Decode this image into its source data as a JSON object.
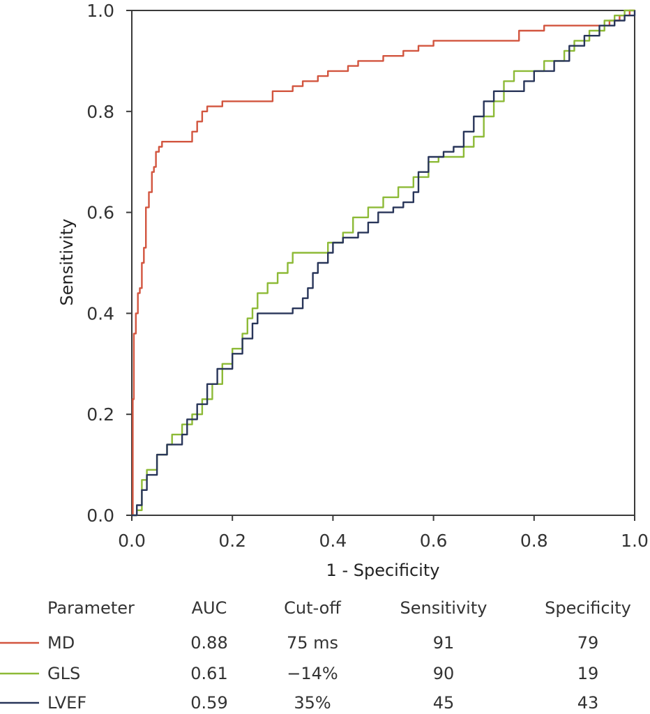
{
  "chart_data": {
    "type": "line",
    "xlabel": "1 - Specificity",
    "ylabel": "Sensitivity",
    "xlim": [
      0,
      1
    ],
    "ylim": [
      0,
      1
    ],
    "x_ticks": [
      "0.0",
      "0.2",
      "0.4",
      "0.6",
      "0.8",
      "1.0"
    ],
    "y_ticks": [
      "0.0",
      "0.2",
      "0.4",
      "0.6",
      "0.8",
      "1.0"
    ],
    "grid": false,
    "series": [
      {
        "name": "MD",
        "color": "#d2553f",
        "points": [
          [
            0,
            0
          ],
          [
            0.002,
            0.23
          ],
          [
            0.004,
            0.36
          ],
          [
            0.008,
            0.4
          ],
          [
            0.012,
            0.44
          ],
          [
            0.016,
            0.45
          ],
          [
            0.02,
            0.5
          ],
          [
            0.024,
            0.53
          ],
          [
            0.028,
            0.61
          ],
          [
            0.034,
            0.64
          ],
          [
            0.04,
            0.68
          ],
          [
            0.044,
            0.69
          ],
          [
            0.048,
            0.72
          ],
          [
            0.054,
            0.73
          ],
          [
            0.06,
            0.74
          ],
          [
            0.11,
            0.74
          ],
          [
            0.12,
            0.76
          ],
          [
            0.13,
            0.78
          ],
          [
            0.14,
            0.8
          ],
          [
            0.15,
            0.81
          ],
          [
            0.175,
            0.81
          ],
          [
            0.18,
            0.82
          ],
          [
            0.26,
            0.82
          ],
          [
            0.28,
            0.84
          ],
          [
            0.3,
            0.84
          ],
          [
            0.32,
            0.85
          ],
          [
            0.34,
            0.86
          ],
          [
            0.37,
            0.87
          ],
          [
            0.39,
            0.88
          ],
          [
            0.42,
            0.88
          ],
          [
            0.43,
            0.89
          ],
          [
            0.45,
            0.9
          ],
          [
            0.5,
            0.91
          ],
          [
            0.54,
            0.92
          ],
          [
            0.57,
            0.93
          ],
          [
            0.6,
            0.94
          ],
          [
            0.75,
            0.94
          ],
          [
            0.77,
            0.96
          ],
          [
            0.82,
            0.97
          ],
          [
            0.9,
            0.97
          ],
          [
            0.95,
            0.98
          ],
          [
            0.97,
            0.99
          ],
          [
            0.99,
            1.0
          ],
          [
            1.0,
            1.0
          ]
        ]
      },
      {
        "name": "GLS",
        "color": "#8dba37",
        "points": [
          [
            0,
            0
          ],
          [
            0.01,
            0.01
          ],
          [
            0.02,
            0.07
          ],
          [
            0.03,
            0.09
          ],
          [
            0.05,
            0.12
          ],
          [
            0.07,
            0.14
          ],
          [
            0.08,
            0.16
          ],
          [
            0.1,
            0.18
          ],
          [
            0.12,
            0.2
          ],
          [
            0.14,
            0.23
          ],
          [
            0.16,
            0.26
          ],
          [
            0.18,
            0.3
          ],
          [
            0.2,
            0.33
          ],
          [
            0.22,
            0.36
          ],
          [
            0.23,
            0.39
          ],
          [
            0.24,
            0.41
          ],
          [
            0.25,
            0.44
          ],
          [
            0.27,
            0.46
          ],
          [
            0.29,
            0.48
          ],
          [
            0.31,
            0.5
          ],
          [
            0.32,
            0.52
          ],
          [
            0.37,
            0.52
          ],
          [
            0.39,
            0.54
          ],
          [
            0.42,
            0.56
          ],
          [
            0.44,
            0.59
          ],
          [
            0.47,
            0.61
          ],
          [
            0.5,
            0.63
          ],
          [
            0.53,
            0.65
          ],
          [
            0.56,
            0.67
          ],
          [
            0.59,
            0.7
          ],
          [
            0.61,
            0.71
          ],
          [
            0.64,
            0.71
          ],
          [
            0.66,
            0.73
          ],
          [
            0.68,
            0.75
          ],
          [
            0.7,
            0.79
          ],
          [
            0.72,
            0.82
          ],
          [
            0.74,
            0.86
          ],
          [
            0.76,
            0.88
          ],
          [
            0.8,
            0.88
          ],
          [
            0.82,
            0.9
          ],
          [
            0.86,
            0.92
          ],
          [
            0.88,
            0.94
          ],
          [
            0.91,
            0.96
          ],
          [
            0.94,
            0.98
          ],
          [
            0.96,
            0.99
          ],
          [
            0.98,
            1.0
          ],
          [
            1.0,
            1.0
          ]
        ]
      },
      {
        "name": "LVEF",
        "color": "#283559",
        "points": [
          [
            0,
            0
          ],
          [
            0.01,
            0.02
          ],
          [
            0.02,
            0.05
          ],
          [
            0.03,
            0.08
          ],
          [
            0.05,
            0.12
          ],
          [
            0.07,
            0.14
          ],
          [
            0.1,
            0.16
          ],
          [
            0.11,
            0.19
          ],
          [
            0.13,
            0.22
          ],
          [
            0.15,
            0.26
          ],
          [
            0.17,
            0.29
          ],
          [
            0.2,
            0.32
          ],
          [
            0.22,
            0.35
          ],
          [
            0.24,
            0.38
          ],
          [
            0.25,
            0.4
          ],
          [
            0.3,
            0.4
          ],
          [
            0.32,
            0.41
          ],
          [
            0.34,
            0.43
          ],
          [
            0.35,
            0.45
          ],
          [
            0.36,
            0.48
          ],
          [
            0.37,
            0.5
          ],
          [
            0.39,
            0.52
          ],
          [
            0.4,
            0.54
          ],
          [
            0.42,
            0.55
          ],
          [
            0.45,
            0.56
          ],
          [
            0.47,
            0.58
          ],
          [
            0.49,
            0.6
          ],
          [
            0.52,
            0.61
          ],
          [
            0.54,
            0.62
          ],
          [
            0.56,
            0.64
          ],
          [
            0.57,
            0.68
          ],
          [
            0.59,
            0.71
          ],
          [
            0.62,
            0.72
          ],
          [
            0.64,
            0.73
          ],
          [
            0.66,
            0.76
          ],
          [
            0.68,
            0.79
          ],
          [
            0.7,
            0.82
          ],
          [
            0.72,
            0.84
          ],
          [
            0.76,
            0.84
          ],
          [
            0.78,
            0.86
          ],
          [
            0.8,
            0.88
          ],
          [
            0.84,
            0.9
          ],
          [
            0.87,
            0.93
          ],
          [
            0.9,
            0.95
          ],
          [
            0.93,
            0.97
          ],
          [
            0.96,
            0.98
          ],
          [
            0.98,
            0.99
          ],
          [
            1.0,
            1.0
          ]
        ]
      }
    ],
    "table": {
      "headers": [
        "Parameter",
        "AUC",
        "Cut-off",
        "Sensitivity",
        "Specificity"
      ],
      "rows": [
        {
          "series": "MD",
          "cells": [
            "MD",
            "0.88",
            "75 ms",
            "91",
            "79"
          ]
        },
        {
          "series": "GLS",
          "cells": [
            "GLS",
            "0.61",
            "−14%",
            "90",
            "19"
          ]
        },
        {
          "series": "LVEF",
          "cells": [
            "LVEF",
            "0.59",
            "35%",
            "45",
            "43"
          ]
        }
      ]
    }
  }
}
